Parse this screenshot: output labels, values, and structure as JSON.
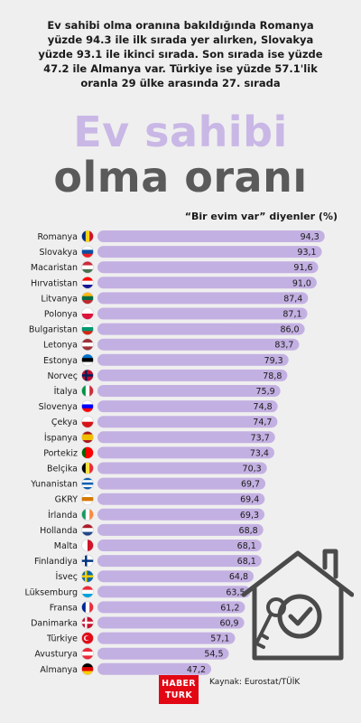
{
  "intro": {
    "line1": "Ev sahibi olma oranına bakıldığında Romanya",
    "line2": "yüzde 94.3 ile ilk sırada yer alırken, Slovakya",
    "line3": "yüzde 93.1 ile ikinci sırada. Son sırada ise yüzde",
    "line4": "47.2 ile Almanya var. Türkiye ise yüzde 57.1'lik",
    "line5": "oranla 29 ülke arasında 27. sırada"
  },
  "title": {
    "line1": "Ev sahibi",
    "line2": "olma oranı"
  },
  "colors": {
    "bar": "#c3b0e2",
    "title_accent": "#c9b7e6",
    "title_dark": "#5a5a5a",
    "brand_red": "#e30613"
  },
  "chart_data": {
    "type": "bar",
    "orientation": "horizontal",
    "title": "“Bir evim var” diyenler (%)",
    "categories": [
      "Romanya",
      "Slovakya",
      "Macaristan",
      "Hırvatistan",
      "Litvanya",
      "Polonya",
      "Bulgaristan",
      "Letonya",
      "Estonya",
      "Norveç",
      "İtalya",
      "Slovenya",
      "Çekya",
      "İspanya",
      "Portekiz",
      "Belçika",
      "Yunanistan",
      "GKRY",
      "İrlanda",
      "Hollanda",
      "Malta",
      "Finlandiya",
      "İsveç",
      "Lüksemburg",
      "Fransa",
      "Danimarka",
      "Türkiye",
      "Avusturya",
      "Almanya"
    ],
    "values": [
      94.3,
      93.1,
      91.6,
      91.0,
      87.4,
      87.1,
      86.0,
      83.7,
      79.3,
      78.8,
      75.9,
      74.8,
      74.7,
      73.7,
      73.4,
      70.3,
      69.7,
      69.4,
      69.3,
      68.8,
      68.1,
      68.1,
      64.8,
      63.5,
      61.2,
      60.9,
      57.1,
      54.5,
      47.2
    ],
    "value_labels": [
      "94,3",
      "93,1",
      "91,6",
      "91,0",
      "87,4",
      "87,1",
      "86,0",
      "83,7",
      "79,3",
      "78,8",
      "75,9",
      "74,8",
      "74,7",
      "73,7",
      "73,4",
      "70,3",
      "69,7",
      "69,4",
      "69,3",
      "68,8",
      "68,1",
      "68,1",
      "64,8",
      "63,5",
      "61,2",
      "60,9",
      "57,1",
      "54,5",
      "47,2"
    ],
    "xlim": [
      0,
      100
    ],
    "grid": false,
    "legend": "none"
  },
  "footer": {
    "logo_line1": "HABER",
    "logo_line2": "TURK",
    "source": "Kaynak: Eurostat/TÜİK"
  },
  "icons": [
    "country-flag-icon",
    "house-check-icon",
    "key-icon"
  ]
}
